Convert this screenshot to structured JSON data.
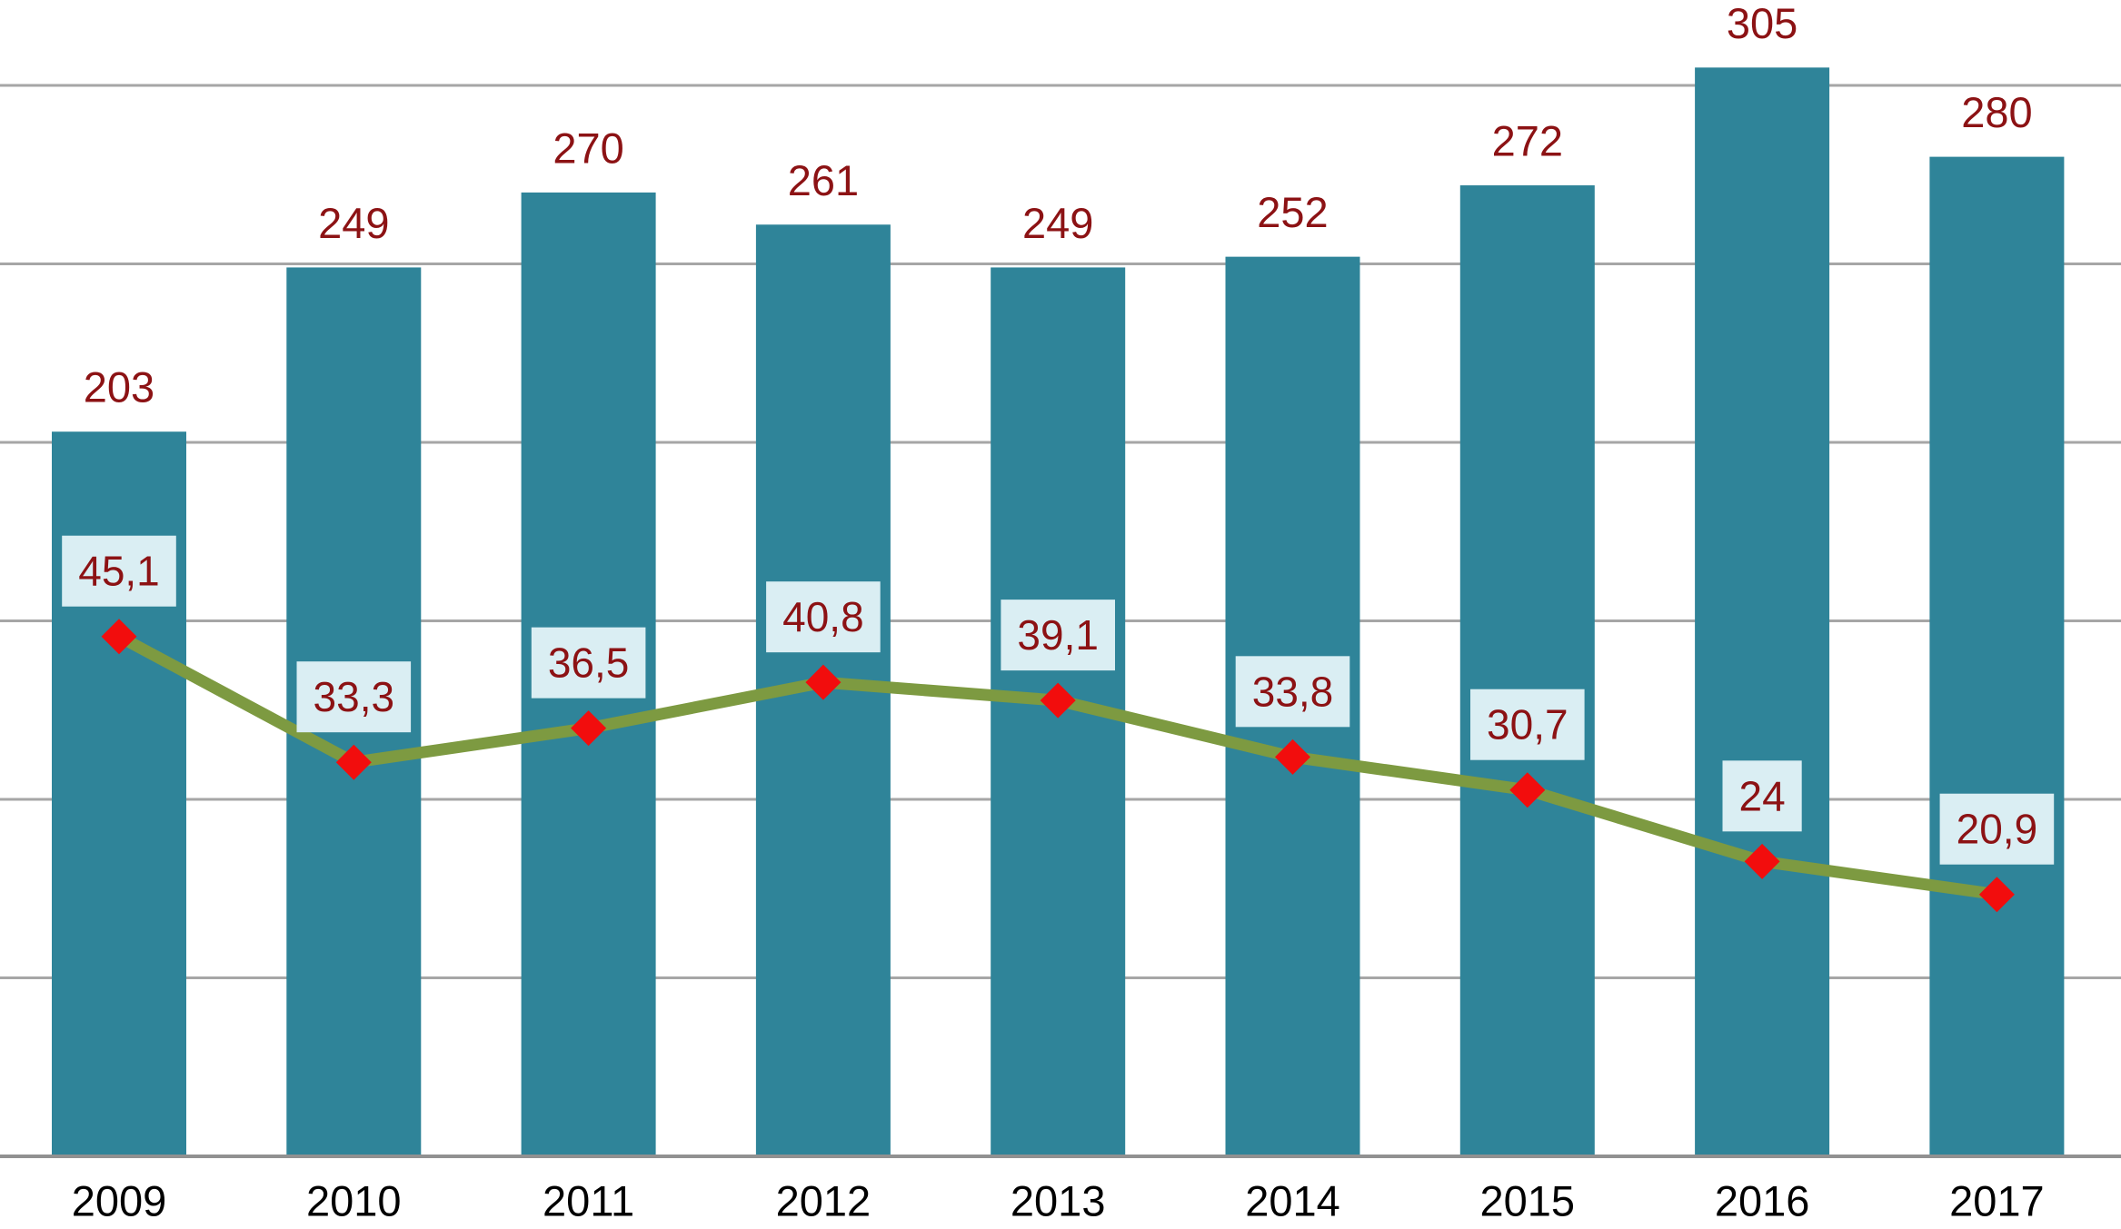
{
  "chart_data": {
    "type": "combo",
    "title": "",
    "xlabel": "",
    "ylabel": "",
    "categories": [
      "2009",
      "2010",
      "2011",
      "2012",
      "2013",
      "2014",
      "2015",
      "2016",
      "2017"
    ],
    "series": [
      {
        "name": "bar-series",
        "type": "bar",
        "color": "#2f8499",
        "values": [
          203,
          249,
          270,
          261,
          249,
          252,
          272,
          305,
          280
        ],
        "labels": [
          "203",
          "249",
          "270",
          "261",
          "249",
          "252",
          "272",
          "305",
          "280"
        ],
        "label_color": "#8c1214"
      },
      {
        "name": "line-series",
        "type": "line",
        "color": "#7d9a41",
        "marker": "diamond",
        "marker_color": "#f20d0d",
        "values": [
          45.1,
          33.3,
          36.5,
          40.8,
          39.1,
          33.8,
          30.7,
          24,
          20.9
        ],
        "labels": [
          "45,1",
          "33,3",
          "36,5",
          "40,8",
          "39,1",
          "33,8",
          "30,7",
          "24",
          "20,9"
        ],
        "label_color": "#8c1214",
        "label_bg": "#daeef3"
      }
    ],
    "axis": {
      "gridline_values": [
        50,
        100,
        150,
        200,
        250,
        300
      ],
      "gridline_color": "#a6a6a6",
      "baseline_color": "#919191",
      "tick_label_color": "#000000",
      "y_axis_labels_visible": false,
      "legend": "none",
      "background": "#ffffff"
    },
    "ylim_primary": [
      0,
      325
    ],
    "ylim_secondary_fit": "line plotted on secondary scale"
  }
}
